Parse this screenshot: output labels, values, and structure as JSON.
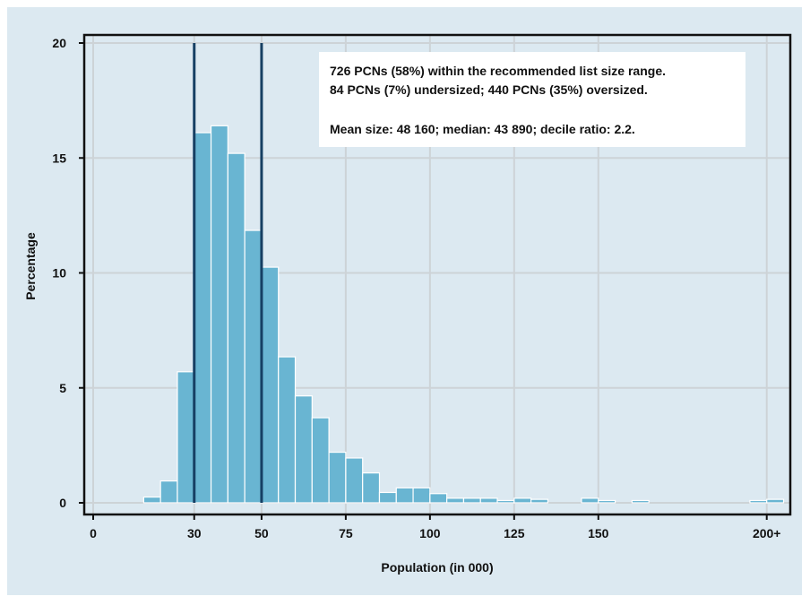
{
  "chart_data": {
    "type": "bar",
    "title": "",
    "xlabel": "Population (in 000)",
    "ylabel": "Percentage",
    "bin_width": 5,
    "xlim": [
      0,
      203
    ],
    "ylim": [
      0,
      20
    ],
    "x_ticks": [
      {
        "value": 0,
        "label": "0"
      },
      {
        "value": 30,
        "label": "30"
      },
      {
        "value": 50,
        "label": "50"
      },
      {
        "value": 75,
        "label": "75"
      },
      {
        "value": 100,
        "label": "100"
      },
      {
        "value": 125,
        "label": "125"
      },
      {
        "value": 150,
        "label": "150"
      },
      {
        "value": 200,
        "label": "200+"
      }
    ],
    "y_ticks": [
      {
        "value": 0,
        "label": "0"
      },
      {
        "value": 5,
        "label": "5"
      },
      {
        "value": 10,
        "label": "10"
      },
      {
        "value": 15,
        "label": "15"
      },
      {
        "value": 20,
        "label": "20"
      }
    ],
    "grid": true,
    "bin_starts": [
      15,
      20,
      25,
      30,
      35,
      40,
      45,
      50,
      55,
      60,
      65,
      70,
      75,
      80,
      85,
      90,
      95,
      100,
      105,
      110,
      115,
      120,
      125,
      130,
      145,
      150,
      160,
      195,
      200
    ],
    "values": [
      0.25,
      0.95,
      5.7,
      16.1,
      16.4,
      15.2,
      11.85,
      10.25,
      6.35,
      4.65,
      3.7,
      2.2,
      1.95,
      1.3,
      0.45,
      0.65,
      0.65,
      0.4,
      0.2,
      0.2,
      0.2,
      0.1,
      0.2,
      0.15,
      0.2,
      0.1,
      0.1,
      0.1,
      0.15
    ],
    "reference_lines": [
      30,
      50
    ],
    "annotation": {
      "line1": "726 PCNs (58%) within the recommended list size range.",
      "line2": "84 PCNs (7%) undersized; 440 PCNs (35%) oversized.",
      "line3": "Mean size: 48 160; median: 43 890; decile ratio: 2.2."
    },
    "colors": {
      "background": "#dce9f1",
      "plot_background": "#dce9f1",
      "bar_fill": "#69b5d2",
      "bar_stroke": "#ffffff",
      "grid": "#cdd3d7",
      "reference_line": "#163f63",
      "axis": "#111111",
      "annotation_box": "#ffffff"
    }
  }
}
